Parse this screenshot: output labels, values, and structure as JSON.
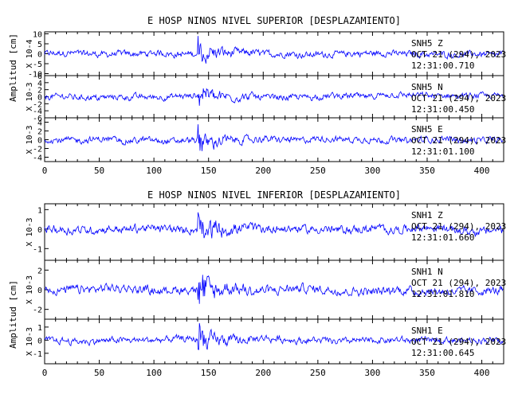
{
  "chart_data": [
    {
      "type": "line",
      "title": "E HOSP NINOS NIVEL SUPERIOR [DESPLAZAMIENTO]",
      "ylabel": "Amplitud [cm]",
      "xlim": [
        0,
        420
      ],
      "xticks": [
        0,
        50,
        100,
        150,
        200,
        250,
        300,
        350,
        400
      ],
      "traces": [
        {
          "station": "SNH5",
          "component": "Z",
          "date": "OCT 21 (294), 2023",
          "time": "12:31:00.710",
          "scale_label": "X 10-4",
          "ylim": [
            -11,
            11
          ],
          "yticks": [
            -10,
            -5,
            0,
            5,
            10
          ],
          "color": "#0000ff",
          "event_onset_s": 140,
          "event_peak": 10
        },
        {
          "station": "SNH5",
          "component": "N",
          "date": "OCT 21 (294), 2023",
          "time": "12:31:00.450",
          "scale_label": "X 10-3",
          "ylim": [
            -6,
            6
          ],
          "yticks": [
            -6,
            -4,
            -2,
            0,
            2,
            4,
            6
          ],
          "color": "#0000ff",
          "event_onset_s": 140,
          "event_peak": 4
        },
        {
          "station": "SNH5",
          "component": "E",
          "date": "OCT 21 (294), 2023",
          "time": "12:31:01.100",
          "scale_label": "X 10-3",
          "ylim": [
            -5,
            5
          ],
          "yticks": [
            -4,
            -2,
            0,
            2,
            4
          ],
          "color": "#0000ff",
          "event_onset_s": 140,
          "event_peak": 4
        }
      ]
    },
    {
      "type": "line",
      "title": "E HOSP NINOS NIVEL INFERIOR [DESPLAZAMIENTO]",
      "ylabel": "Amplitud [cm]",
      "xlim": [
        0,
        420
      ],
      "xticks": [
        0,
        50,
        100,
        150,
        200,
        250,
        300,
        350,
        400
      ],
      "traces": [
        {
          "station": "SNH1",
          "component": "Z",
          "date": "OCT 21 (294), 2023",
          "time": "12:31:01.660",
          "scale_label": "X 10-3",
          "ylim": [
            -1.6,
            1.3
          ],
          "yticks": [
            -1,
            0,
            1
          ],
          "color": "#0000ff",
          "event_onset_s": 140,
          "event_peak": 1
        },
        {
          "station": "SNH1",
          "component": "N",
          "date": "OCT 21 (294), 2023",
          "time": "12:31:01.810",
          "scale_label": "X 10-3",
          "ylim": [
            -3,
            3
          ],
          "yticks": [
            -2,
            0,
            2
          ],
          "color": "#0000ff",
          "event_onset_s": 140,
          "event_peak": 2.5
        },
        {
          "station": "SNH1",
          "component": "E",
          "date": "OCT 21 (294), 2023",
          "time": "12:31:00.645",
          "scale_label": "X 10-3",
          "ylim": [
            -1.8,
            1.6
          ],
          "yticks": [
            -1,
            0,
            1
          ],
          "color": "#0000ff",
          "event_onset_s": 140,
          "event_peak": 1.5
        }
      ]
    }
  ]
}
